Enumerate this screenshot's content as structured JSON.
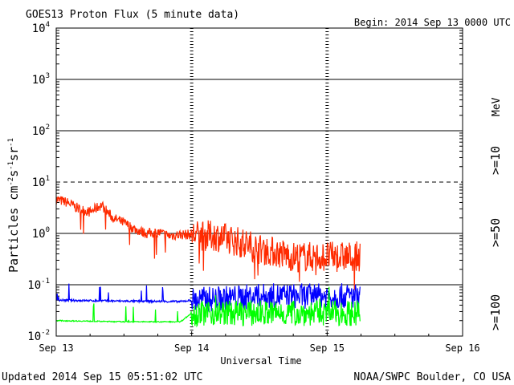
{
  "chart_data": {
    "type": "line",
    "title": "GOES13 Proton Flux (5 minute data)",
    "begin_label": "Begin: 2014 Sep 13 0000 UTC",
    "xlabel": "Universal Time",
    "ylabel": {
      "base": "Particles cm",
      "exp1": "-2",
      "mid1": "s",
      "exp2": "-1",
      "mid2": "sr",
      "exp3": "-1"
    },
    "x_ticks": [
      "Sep 13",
      "Sep 14",
      "Sep 15",
      "Sep 16"
    ],
    "xlim": [
      "2014-09-13 00:00",
      "2014-09-16 00:00"
    ],
    "y_scale": "log",
    "ylim": [
      0.01,
      10000
    ],
    "y_ticks": [
      {
        "base": "10",
        "exp": "-2",
        "value": 0.01
      },
      {
        "base": "10",
        "exp": "-1",
        "value": 0.1
      },
      {
        "base": "10",
        "exp": "0",
        "value": 1
      },
      {
        "base": "10",
        "exp": "1",
        "value": 10
      },
      {
        "base": "10",
        "exp": "2",
        "value": 100
      },
      {
        "base": "10",
        "exp": "3",
        "value": 1000
      },
      {
        "base": "10",
        "exp": "4",
        "value": 10000
      }
    ],
    "threshold_dashed_value": 10,
    "legend_placement": "right",
    "legend_unit": "MeV",
    "series": [
      {
        "name": ">=10",
        "color": "#ff2a00",
        "points": [
          [
            "2014-09-13 00:00",
            4.6
          ],
          [
            "2014-09-13 02:00",
            4.0
          ],
          [
            "2014-09-13 04:00",
            3.0
          ],
          [
            "2014-09-13 06:00",
            2.6
          ],
          [
            "2014-09-13 08:00",
            3.6
          ],
          [
            "2014-09-13 10:00",
            2.0
          ],
          [
            "2014-09-13 12:00",
            1.6
          ],
          [
            "2014-09-13 14:00",
            1.2
          ],
          [
            "2014-09-13 16:00",
            1.0
          ],
          [
            "2014-09-13 18:00",
            1.05
          ],
          [
            "2014-09-13 20:00",
            0.9
          ],
          [
            "2014-09-13 22:00",
            0.95
          ],
          [
            "2014-09-14 00:00",
            0.95
          ],
          [
            "2014-09-14 02:00",
            0.9
          ],
          [
            "2014-09-14 04:00",
            0.9
          ],
          [
            "2014-09-14 06:00",
            0.8
          ],
          [
            "2014-09-14 08:00",
            0.7
          ],
          [
            "2014-09-14 10:00",
            0.6
          ],
          [
            "2014-09-14 12:00",
            0.5
          ],
          [
            "2014-09-14 14:00",
            0.45
          ],
          [
            "2014-09-14 16:00",
            0.4
          ],
          [
            "2014-09-14 18:00",
            0.35
          ],
          [
            "2014-09-14 20:00",
            0.35
          ],
          [
            "2014-09-14 22:00",
            0.35
          ],
          [
            "2014-09-15 00:00",
            0.35
          ],
          [
            "2014-09-15 02:00",
            0.35
          ],
          [
            "2014-09-15 04:00",
            0.35
          ],
          [
            "2014-09-15 05:50",
            0.35
          ]
        ]
      },
      {
        "name": ">=50",
        "color": "#0000ff",
        "points": [
          [
            "2014-09-13 00:00",
            0.05
          ],
          [
            "2014-09-13 12:00",
            0.048
          ],
          [
            "2014-09-13 22:00",
            0.047
          ],
          [
            "2014-09-14 00:00",
            0.05
          ],
          [
            "2014-09-14 12:00",
            0.06
          ],
          [
            "2014-09-15 00:00",
            0.06
          ],
          [
            "2014-09-15 05:50",
            0.06
          ]
        ]
      },
      {
        "name": ">=100",
        "color": "#00ff00",
        "points": [
          [
            "2014-09-13 00:00",
            0.02
          ],
          [
            "2014-09-13 12:00",
            0.019
          ],
          [
            "2014-09-13 22:00",
            0.019
          ],
          [
            "2014-09-14 00:00",
            0.028
          ],
          [
            "2014-09-14 12:00",
            0.028
          ],
          [
            "2014-09-15 00:00",
            0.028
          ],
          [
            "2014-09-15 05:50",
            0.028
          ]
        ]
      }
    ]
  },
  "footer": {
    "updated": "Updated 2014 Sep 15 05:51:02 UTC",
    "source": "NOAA/SWPC Boulder, CO USA"
  }
}
